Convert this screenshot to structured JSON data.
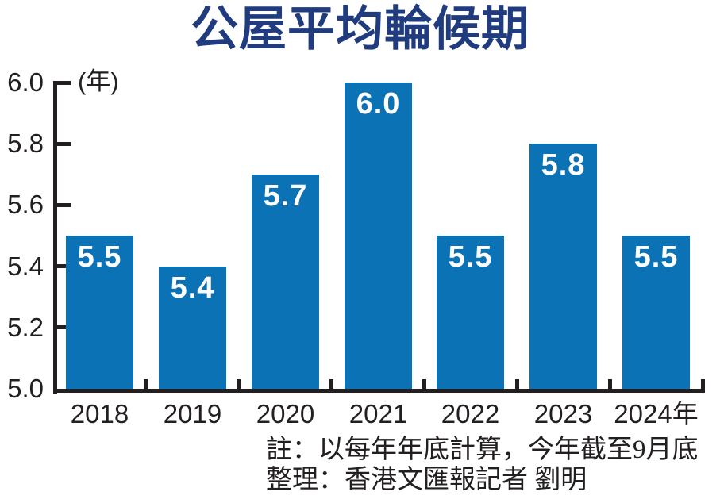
{
  "title": "公屋平均輪候期",
  "y_axis_unit": "(年)",
  "chart_data": {
    "type": "bar",
    "title": "公屋平均輪候期",
    "categories": [
      "2018",
      "2019",
      "2020",
      "2021",
      "2022",
      "2023",
      "2024年"
    ],
    "values": [
      5.5,
      5.4,
      5.7,
      6.0,
      5.5,
      5.8,
      5.5
    ],
    "xlabel": "",
    "ylabel": "(年)",
    "ylim": [
      5.0,
      6.0
    ],
    "yticks": [
      5.0,
      5.2,
      5.4,
      5.6,
      5.8,
      6.0
    ],
    "grid": false,
    "legend": false,
    "bar_color": "#0b72b6",
    "value_label_color": "#ffffff"
  },
  "notes": {
    "line1": "註：以每年年底計算，今年截至9月底",
    "line2": "整理：香港文匯報記者 劉明"
  },
  "colors": {
    "title": "#203c7f",
    "axis": "#231f20",
    "bar": "#0b72b6"
  }
}
